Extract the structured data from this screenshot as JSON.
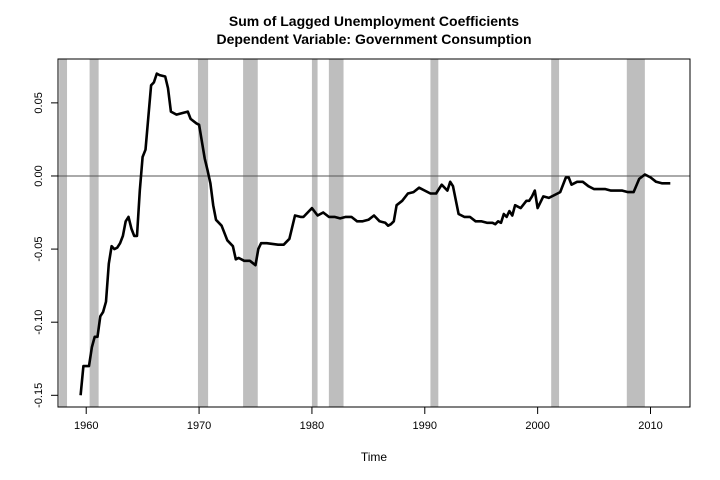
{
  "chart_data": {
    "type": "line",
    "title": "Sum of Lagged Unemployment Coefficients",
    "subtitle": "Dependent Variable: Government Consumption",
    "xlabel": "Time",
    "ylabel": "",
    "xlim": [
      1957.5,
      2013.5
    ],
    "ylim": [
      -0.158,
      0.08
    ],
    "x_ticks": [
      1960,
      1970,
      1980,
      1990,
      2000,
      2010
    ],
    "x_tick_labels": [
      "1960",
      "1970",
      "1980",
      "1990",
      "2000",
      "2010"
    ],
    "y_ticks": [
      -0.15,
      -0.1,
      -0.05,
      0.0,
      0.05
    ],
    "y_tick_labels": [
      "-0.15",
      "-0.10",
      "-0.05",
      "0.00",
      "0.05"
    ],
    "reference_line_y": 0.0,
    "recessions": [
      [
        1957.6,
        1958.3
      ],
      [
        1960.3,
        1961.1
      ],
      [
        1969.9,
        1970.8
      ],
      [
        1973.9,
        1975.2
      ],
      [
        1980.0,
        1980.5
      ],
      [
        1981.5,
        1982.8
      ],
      [
        1990.5,
        1991.2
      ],
      [
        2001.2,
        2001.9
      ],
      [
        2007.9,
        2009.5
      ]
    ],
    "series": [
      {
        "x": [
          1959.5,
          1959.75,
          1960.0,
          1960.25,
          1960.5,
          1960.75,
          1961.0,
          1961.25,
          1961.5,
          1961.75,
          1962.0,
          1962.25,
          1962.5,
          1962.75,
          1963.0,
          1963.25,
          1963.5,
          1963.75,
          1964.0,
          1964.25,
          1964.5,
          1964.75,
          1965.0,
          1965.25,
          1965.5,
          1965.75,
          1966.0,
          1966.25,
          1966.5,
          1967.0,
          1967.25,
          1967.5,
          1968.0,
          1968.5,
          1969.0,
          1969.25,
          1969.75,
          1970.0,
          1970.5,
          1970.75,
          1971.0,
          1971.25,
          1971.5,
          1972.0,
          1972.5,
          1973.0,
          1973.25,
          1973.5,
          1974.0,
          1974.5,
          1975.0,
          1975.25,
          1975.5,
          1976.0,
          1977.0,
          1977.5,
          1978.0,
          1978.5,
          1979.0,
          1979.25,
          1980.0,
          1980.5,
          1981.0,
          1981.5,
          1982.0,
          1982.5,
          1983.0,
          1983.5,
          1984.0,
          1984.5,
          1985.0,
          1985.5,
          1986.0,
          1986.5,
          1986.75,
          1987.0,
          1987.25,
          1987.5,
          1988.0,
          1988.5,
          1989.0,
          1989.5,
          1990.0,
          1990.5,
          1991.0,
          1991.5,
          1992.0,
          1992.25,
          1992.5,
          1993.0,
          1993.5,
          1994.0,
          1994.5,
          1995.0,
          1995.5,
          1996.0,
          1996.25,
          1996.5,
          1996.75,
          1997.0,
          1997.25,
          1997.5,
          1997.75,
          1998.0,
          1998.5,
          1999.0,
          1999.25,
          1999.5,
          1999.75,
          2000.0,
          2000.5,
          2001.0,
          2001.5,
          2002.0,
          2002.5,
          2002.75,
          2003.0,
          2003.5,
          2004.0,
          2004.5,
          2005.0,
          2005.5,
          2006.0,
          2006.5,
          2007.0,
          2007.5,
          2008.0,
          2008.5,
          2009.0,
          2009.5,
          2010.0,
          2010.5,
          2011.0,
          2011.5,
          2011.75
        ],
        "y": [
          -0.15,
          -0.13,
          -0.13,
          -0.13,
          -0.117,
          -0.11,
          -0.11,
          -0.096,
          -0.093,
          -0.086,
          -0.06,
          -0.048,
          -0.05,
          -0.049,
          -0.046,
          -0.041,
          -0.031,
          -0.028,
          -0.036,
          -0.041,
          -0.041,
          -0.01,
          0.013,
          0.018,
          0.04,
          0.062,
          0.064,
          0.07,
          0.069,
          0.068,
          0.06,
          0.044,
          0.042,
          0.043,
          0.044,
          0.039,
          0.036,
          0.035,
          0.012,
          0.004,
          -0.005,
          -0.02,
          -0.03,
          -0.034,
          -0.044,
          -0.048,
          -0.057,
          -0.056,
          -0.058,
          -0.058,
          -0.061,
          -0.05,
          -0.046,
          -0.046,
          -0.047,
          -0.047,
          -0.043,
          -0.027,
          -0.028,
          -0.028,
          -0.022,
          -0.027,
          -0.025,
          -0.028,
          -0.028,
          -0.029,
          -0.028,
          -0.028,
          -0.031,
          -0.031,
          -0.03,
          -0.027,
          -0.031,
          -0.032,
          -0.034,
          -0.033,
          -0.031,
          -0.02,
          -0.017,
          -0.012,
          -0.011,
          -0.008,
          -0.01,
          -0.012,
          -0.012,
          -0.006,
          -0.01,
          -0.004,
          -0.007,
          -0.026,
          -0.028,
          -0.028,
          -0.031,
          -0.031,
          -0.032,
          -0.032,
          -0.033,
          -0.031,
          -0.032,
          -0.026,
          -0.028,
          -0.024,
          -0.027,
          -0.02,
          -0.022,
          -0.017,
          -0.017,
          -0.014,
          -0.01,
          -0.022,
          -0.014,
          -0.015,
          -0.013,
          -0.011,
          -0.001,
          -0.001,
          -0.006,
          -0.004,
          -0.004,
          -0.007,
          -0.009,
          -0.009,
          -0.009,
          -0.01,
          -0.01,
          -0.01,
          -0.011,
          -0.011,
          -0.002,
          0.001,
          -0.001,
          -0.004,
          -0.005,
          -0.005,
          -0.005
        ]
      }
    ]
  }
}
